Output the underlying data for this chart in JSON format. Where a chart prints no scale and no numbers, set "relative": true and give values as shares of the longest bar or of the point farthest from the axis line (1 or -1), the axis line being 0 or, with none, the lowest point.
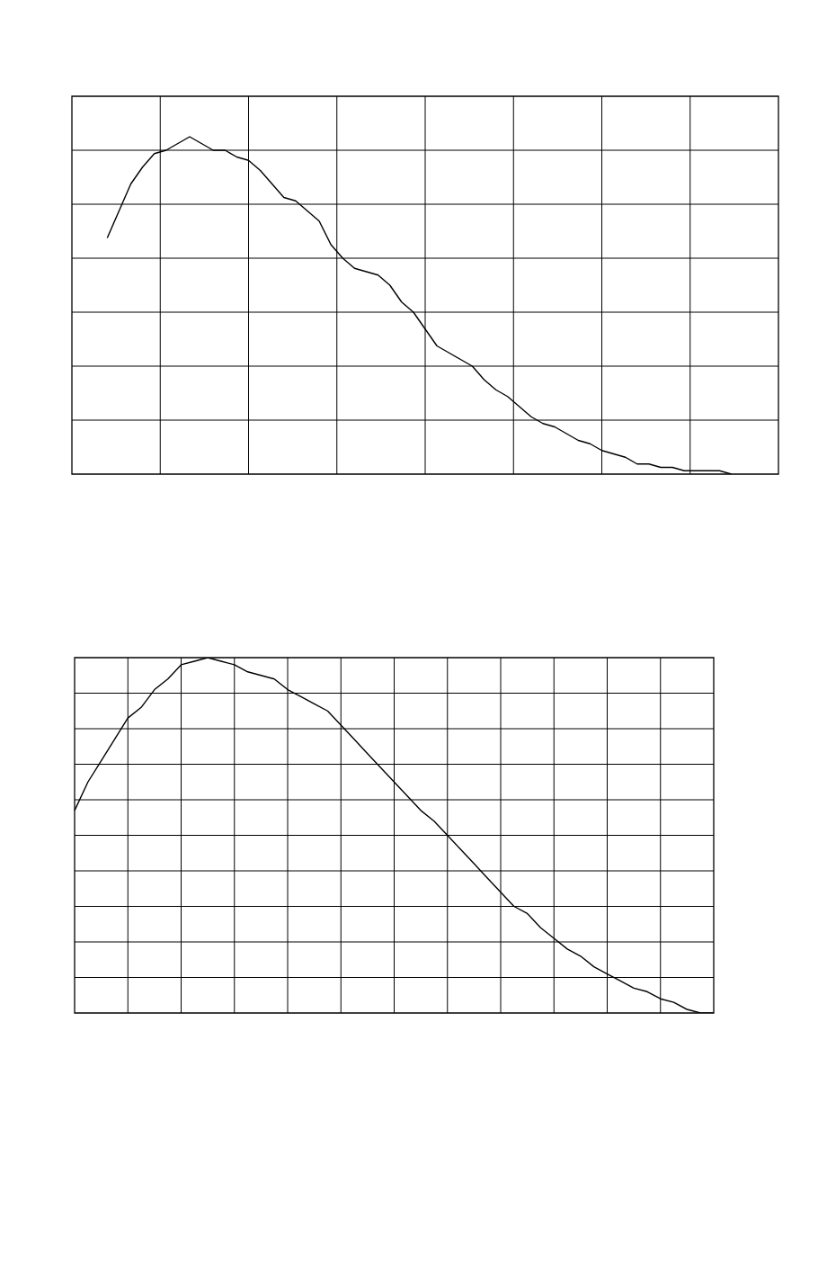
{
  "chart_data": [
    {
      "type": "line",
      "relative": true,
      "grid": true,
      "marker": "none",
      "line_style": "solid",
      "categories": [
        null,
        null,
        null,
        null,
        null,
        null,
        null,
        null,
        null,
        null,
        null,
        null,
        null,
        null,
        null,
        null,
        null,
        null,
        null,
        null,
        null,
        null,
        null,
        null,
        null,
        null,
        null,
        null,
        null,
        null,
        null,
        null,
        null,
        null,
        null,
        null,
        null,
        null,
        null,
        null,
        null,
        null,
        null,
        null,
        null,
        null,
        null,
        null,
        null,
        null,
        null,
        null,
        null,
        null,
        null,
        null,
        null,
        null,
        null,
        null,
        null
      ],
      "series": [
        {
          "color": "#000000",
          "values": [
            null,
            null,
            null,
            0.7,
            0.78,
            0.86,
            0.91,
            0.95,
            0.96,
            0.98,
            1,
            0.98,
            0.96,
            0.96,
            0.94,
            0.93,
            0.9,
            0.86,
            0.82,
            0.81,
            0.78,
            0.75,
            0.68,
            0.64,
            0.61,
            0.6,
            0.59,
            0.56,
            0.51,
            0.48,
            0.43,
            0.38,
            0.36,
            0.34,
            0.32,
            0.28,
            0.25,
            0.23,
            0.2,
            0.17,
            0.15,
            0.14,
            0.12,
            0.1,
            0.09,
            0.07,
            0.06,
            0.05,
            0.03,
            0.03,
            0.02,
            0.02,
            0.01,
            0.01,
            0.01,
            0.01,
            0,
            null,
            null,
            null,
            null
          ]
        }
      ]
    },
    {
      "type": "line",
      "relative": true,
      "grid": true,
      "marker": "none",
      "line_style": "solid",
      "categories": [
        null,
        null,
        null,
        null,
        null,
        null,
        null,
        null,
        null,
        null,
        null,
        null,
        null,
        null,
        null,
        null,
        null,
        null,
        null,
        null,
        null,
        null,
        null,
        null,
        null,
        null,
        null,
        null,
        null,
        null,
        null,
        null,
        null,
        null,
        null,
        null,
        null,
        null,
        null,
        null,
        null,
        null,
        null,
        null,
        null,
        null,
        null,
        null,
        null
      ],
      "series": [
        {
          "color": "#000000",
          "values": [
            0.57,
            0.65,
            0.71,
            0.77,
            0.83,
            0.86,
            0.91,
            0.94,
            0.98,
            0.99,
            1,
            0.99,
            0.98,
            0.96,
            0.95,
            0.94,
            0.91,
            0.89,
            0.87,
            0.85,
            0.81,
            0.77,
            0.73,
            0.69,
            0.65,
            0.61,
            0.57,
            0.54,
            0.5,
            0.46,
            0.42,
            0.38,
            0.34,
            0.3,
            0.28,
            0.24,
            0.21,
            0.18,
            0.16,
            0.13,
            0.11,
            0.09,
            0.07,
            0.06,
            0.04,
            0.03,
            0.01,
            0,
            0
          ]
        }
      ]
    }
  ]
}
